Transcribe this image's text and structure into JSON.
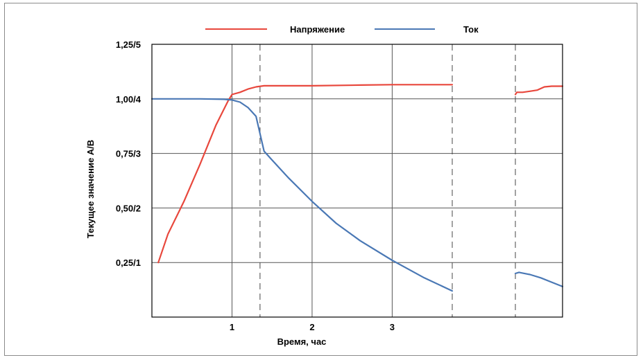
{
  "chart_data": {
    "type": "line",
    "xlabel": "Время, час",
    "ylabel": "Текущее значение А/В",
    "xlim": [
      0,
      6
    ],
    "ylim": [
      0,
      1.25
    ],
    "x_ticks": [
      {
        "value": 1,
        "label": "1"
      },
      {
        "value": 2,
        "label": "2"
      },
      {
        "value": 3,
        "label": "3"
      }
    ],
    "y_ticks": [
      {
        "value": 0.25,
        "label": "0,25/1"
      },
      {
        "value": 0.5,
        "label": "0,50/2"
      },
      {
        "value": 0.75,
        "label": "0,75/3"
      },
      {
        "value": 1.0,
        "label": "1,00/4"
      },
      {
        "value": 1.25,
        "label": "1,25/5"
      }
    ],
    "grid": true,
    "dashed_vlines": [
      1.35,
      3.75,
      4.5
    ],
    "legend": {
      "placement": "top-center"
    },
    "series": [
      {
        "name": "Напряжение",
        "color": "#e8473c",
        "segments": [
          {
            "x": [
              0.08,
              0.2,
              0.4,
              0.6,
              0.8,
              0.95,
              1.0,
              1.1,
              1.2,
              1.3,
              1.4,
              1.6,
              2.0,
              2.6,
              3.0,
              3.5,
              3.75
            ],
            "y": [
              0.25,
              0.38,
              0.53,
              0.7,
              0.88,
              0.99,
              1.02,
              1.03,
              1.045,
              1.055,
              1.06,
              1.06,
              1.06,
              1.063,
              1.065,
              1.065,
              1.065
            ]
          },
          {
            "x": [
              4.5,
              4.52,
              4.6,
              4.7,
              4.8,
              4.9,
              5.0,
              5.1,
              5.15
            ],
            "y": [
              1.02,
              1.03,
              1.03,
              1.035,
              1.04,
              1.055,
              1.058,
              1.058,
              1.058
            ]
          }
        ]
      },
      {
        "name": "Ток",
        "color": "#4a78b5",
        "segments": [
          {
            "x": [
              0.0,
              0.3,
              0.6,
              0.9,
              1.0,
              1.1,
              1.2,
              1.3,
              1.35,
              1.4,
              1.5,
              1.7,
              2.0,
              2.3,
              2.6,
              3.0,
              3.4,
              3.75
            ],
            "y": [
              1.0,
              1.0,
              1.0,
              0.998,
              0.995,
              0.985,
              0.96,
              0.92,
              0.84,
              0.76,
              0.72,
              0.64,
              0.53,
              0.43,
              0.35,
              0.26,
              0.18,
              0.12
            ]
          },
          {
            "x": [
              4.5,
              4.55,
              4.7,
              4.85,
              5.0,
              5.15
            ],
            "y": [
              0.2,
              0.205,
              0.195,
              0.18,
              0.16,
              0.14
            ]
          }
        ]
      }
    ]
  }
}
